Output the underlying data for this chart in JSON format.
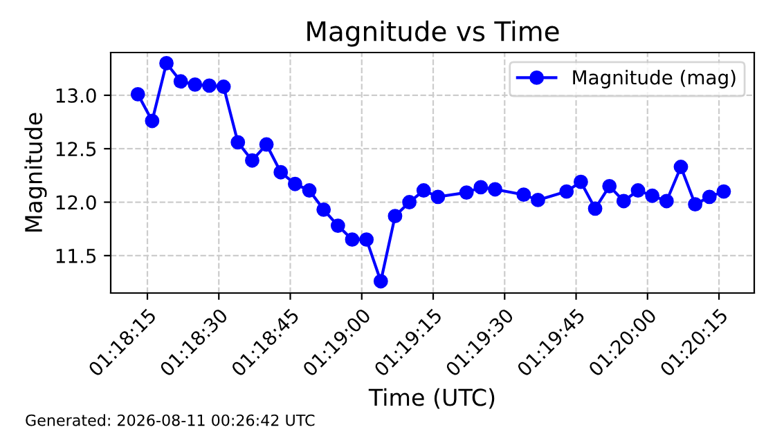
{
  "chart_data": {
    "type": "line",
    "title": "Magnitude vs Time",
    "xlabel": "Time (UTC)",
    "ylabel": "Magnitude",
    "annotations": [
      "Generated: 2026-08-11 00:26:42 UTC"
    ],
    "x": [
      1.303611,
      1.304444,
      1.305278,
      1.306111,
      1.306944,
      1.307778,
      1.308611,
      1.309444,
      1.310278,
      1.311111,
      1.311944,
      1.312778,
      1.313611,
      1.314444,
      1.315278,
      1.316111,
      1.316944,
      1.317778,
      1.318611,
      1.319444,
      1.320278,
      1.321111,
      1.322778,
      1.323611,
      1.324444,
      1.326111,
      1.326944,
      1.328611,
      1.329444,
      1.330278,
      1.331111,
      1.331944,
      1.332778,
      1.333611,
      1.334444,
      1.335278,
      1.336111,
      1.336944,
      1.337778
    ],
    "series": [
      {
        "name": "Magnitude (mag)",
        "color": "#0000ff",
        "values": [
          13.01,
          12.76,
          13.3,
          13.13,
          13.1,
          13.09,
          13.08,
          12.56,
          12.39,
          12.54,
          12.28,
          12.17,
          12.11,
          11.93,
          11.78,
          11.65,
          11.65,
          11.26,
          11.87,
          12.0,
          12.11,
          12.05,
          12.09,
          12.14,
          12.12,
          12.07,
          12.02,
          12.1,
          12.19,
          11.94,
          12.15,
          12.01,
          12.11,
          12.06,
          12.01,
          12.33,
          11.98,
          12.05,
          12.1
        ]
      }
    ],
    "xlim": [
      1.302028,
      1.339556
    ],
    "xticks": [
      {
        "value": 1.304167,
        "label": "01:18:15"
      },
      {
        "value": 1.308333,
        "label": "01:18:30"
      },
      {
        "value": 1.3125,
        "label": "01:18:45"
      },
      {
        "value": 1.316667,
        "label": "01:19:00"
      },
      {
        "value": 1.320833,
        "label": "01:19:15"
      },
      {
        "value": 1.325,
        "label": "01:19:30"
      },
      {
        "value": 1.329167,
        "label": "01:19:45"
      },
      {
        "value": 1.333333,
        "label": "01:20:00"
      },
      {
        "value": 1.3375,
        "label": "01:20:15"
      }
    ],
    "ylim": [
      11.15,
      13.4
    ],
    "yticks": [
      11.5,
      {
        "value": 12,
        "label": "12.0"
      },
      12.5,
      {
        "value": 13,
        "label": "13.0"
      }
    ],
    "grid": true,
    "legend": "top right",
    "marker": "circle",
    "line_style": "solid"
  }
}
